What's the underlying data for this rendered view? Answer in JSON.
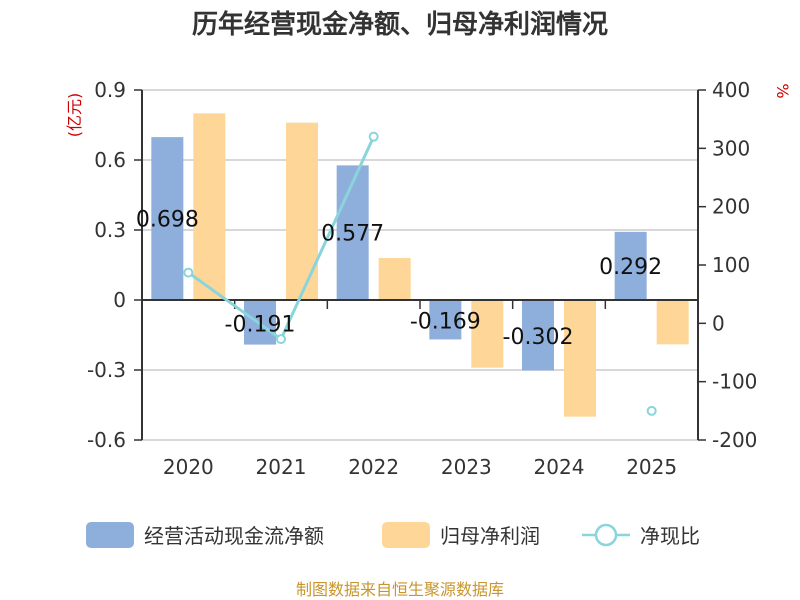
{
  "chart_data": {
    "type": "bar",
    "title": "历年经营现金净额、归母净利润情况",
    "categories": [
      "2020",
      "2021",
      "2022",
      "2023",
      "2024",
      "2025"
    ],
    "left_axis": {
      "unit": "(亿元)",
      "ylim": [
        -0.6,
        0.9
      ],
      "ticks": [
        "0.9",
        "0.6",
        "0.3",
        "0",
        "-0.3",
        "-0.6"
      ],
      "tick_values": [
        0.9,
        0.6,
        0.3,
        0,
        -0.3,
        -0.6
      ]
    },
    "right_axis": {
      "unit": "%",
      "ylim": [
        -200,
        400
      ],
      "ticks": [
        "400",
        "300",
        "200",
        "100",
        "0",
        "-100",
        "-200"
      ],
      "tick_values": [
        400,
        300,
        200,
        100,
        0,
        -100,
        -200
      ]
    },
    "series": [
      {
        "name": "经营活动现金流净额",
        "type": "bar",
        "axis": "left",
        "color": "#8eaedb",
        "values": [
          0.698,
          -0.191,
          0.577,
          -0.169,
          -0.302,
          0.292
        ],
        "labels": [
          "0.698",
          "-0.191",
          "0.577",
          "-0.169",
          "-0.302",
          "0.292"
        ]
      },
      {
        "name": "归母净利润",
        "type": "bar",
        "axis": "left",
        "color": "#fdd698",
        "values": [
          0.8,
          0.76,
          0.18,
          -0.29,
          -0.5,
          -0.19
        ]
      },
      {
        "name": "净现比",
        "type": "line",
        "axis": "right",
        "color": "#8ad4dc",
        "values": [
          87,
          -27,
          320,
          null,
          null,
          -150
        ]
      }
    ],
    "grid": true,
    "legend_position": "bottom"
  },
  "source": "制图数据来自恒生聚源数据库"
}
